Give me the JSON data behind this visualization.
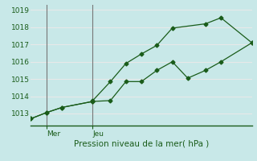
{
  "title": "Pression niveau de la mer( hPa )",
  "bg_color": "#c8e8e8",
  "line_color": "#1a5c1a",
  "grid_white": "#e8e8e8",
  "ylim": [
    1012.3,
    1019.3
  ],
  "yticks": [
    1013,
    1014,
    1015,
    1016,
    1017,
    1018,
    1019
  ],
  "xlim": [
    0,
    1
  ],
  "xtick_labels": [
    "Mer",
    "Jeu"
  ],
  "xtick_positions": [
    0.07,
    0.28
  ],
  "vline_color": "#777777",
  "vline_positions": [
    0.07,
    0.28
  ],
  "line1_x": [
    0.0,
    0.07,
    0.14,
    0.28,
    0.28,
    0.36,
    0.43,
    0.5,
    0.57,
    0.64,
    0.79,
    0.86,
    1.0
  ],
  "line1_y": [
    1012.7,
    1013.05,
    1013.35,
    1013.7,
    1013.75,
    1014.85,
    1015.9,
    1016.45,
    1016.95,
    1017.95,
    1018.2,
    1018.55,
    1017.1
  ],
  "line2_x": [
    0.0,
    0.07,
    0.14,
    0.28,
    0.36,
    0.43,
    0.5,
    0.57,
    0.64,
    0.71,
    0.79,
    0.86,
    1.0
  ],
  "line2_y": [
    1012.7,
    1013.05,
    1013.35,
    1013.7,
    1013.75,
    1014.85,
    1014.85,
    1015.5,
    1016.0,
    1015.05,
    1015.5,
    1016.0,
    1017.1
  ]
}
